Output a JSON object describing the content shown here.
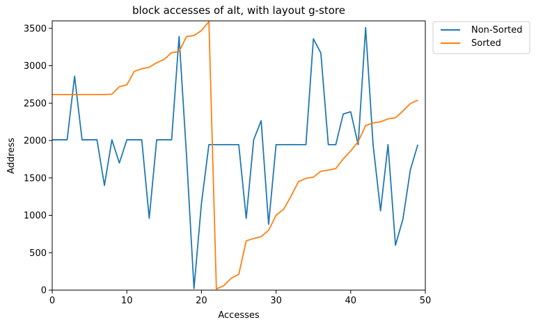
{
  "chart_data": {
    "type": "line",
    "title": "block accesses of alt, with layout g-store",
    "xlabel": "Accesses",
    "ylabel": "Address",
    "xlim": [
      0,
      50
    ],
    "ylim": [
      0,
      3600
    ],
    "xticks": [
      0,
      10,
      20,
      30,
      40,
      50
    ],
    "yticks": [
      0,
      500,
      1000,
      1500,
      2000,
      2500,
      3000,
      3500
    ],
    "grid": false,
    "legend_position": "outside-top-right",
    "x": [
      0,
      1,
      2,
      3,
      4,
      5,
      6,
      7,
      8,
      9,
      10,
      11,
      12,
      13,
      14,
      15,
      16,
      17,
      18,
      19,
      20,
      21,
      22,
      23,
      24,
      25,
      26,
      27,
      28,
      29,
      30,
      31,
      32,
      33,
      34,
      35,
      36,
      37,
      38,
      39,
      40,
      41,
      42,
      43,
      44,
      45,
      46,
      47,
      48,
      49
    ],
    "series": [
      {
        "name": "Non-Sorted",
        "color": "#1f77b4",
        "values": [
          2010,
          2010,
          2010,
          2860,
          2010,
          2010,
          2010,
          1400,
          2010,
          1700,
          2010,
          2010,
          2010,
          960,
          2010,
          2010,
          2010,
          3390,
          1800,
          20,
          1160,
          1945,
          1945,
          1945,
          1945,
          1945,
          960,
          2010,
          2265,
          880,
          1945,
          1945,
          1945,
          1945,
          1945,
          3360,
          3170,
          1945,
          1945,
          2355,
          2385,
          1945,
          3510,
          1945,
          1060,
          1945,
          600,
          950,
          1610,
          1945
        ]
      },
      {
        "name": "Sorted",
        "color": "#ff7f0e",
        "values": [
          2615,
          2615,
          2615,
          2615,
          2615,
          2615,
          2615,
          2615,
          2620,
          2720,
          2745,
          2925,
          2960,
          2980,
          3040,
          3085,
          3175,
          3190,
          3390,
          3405,
          3470,
          3590,
          15,
          60,
          160,
          210,
          660,
          690,
          715,
          800,
          1000,
          1080,
          1255,
          1450,
          1495,
          1510,
          1590,
          1605,
          1625,
          1755,
          1860,
          1985,
          2200,
          2235,
          2250,
          2290,
          2305,
          2395,
          2495,
          2540
        ]
      }
    ]
  }
}
